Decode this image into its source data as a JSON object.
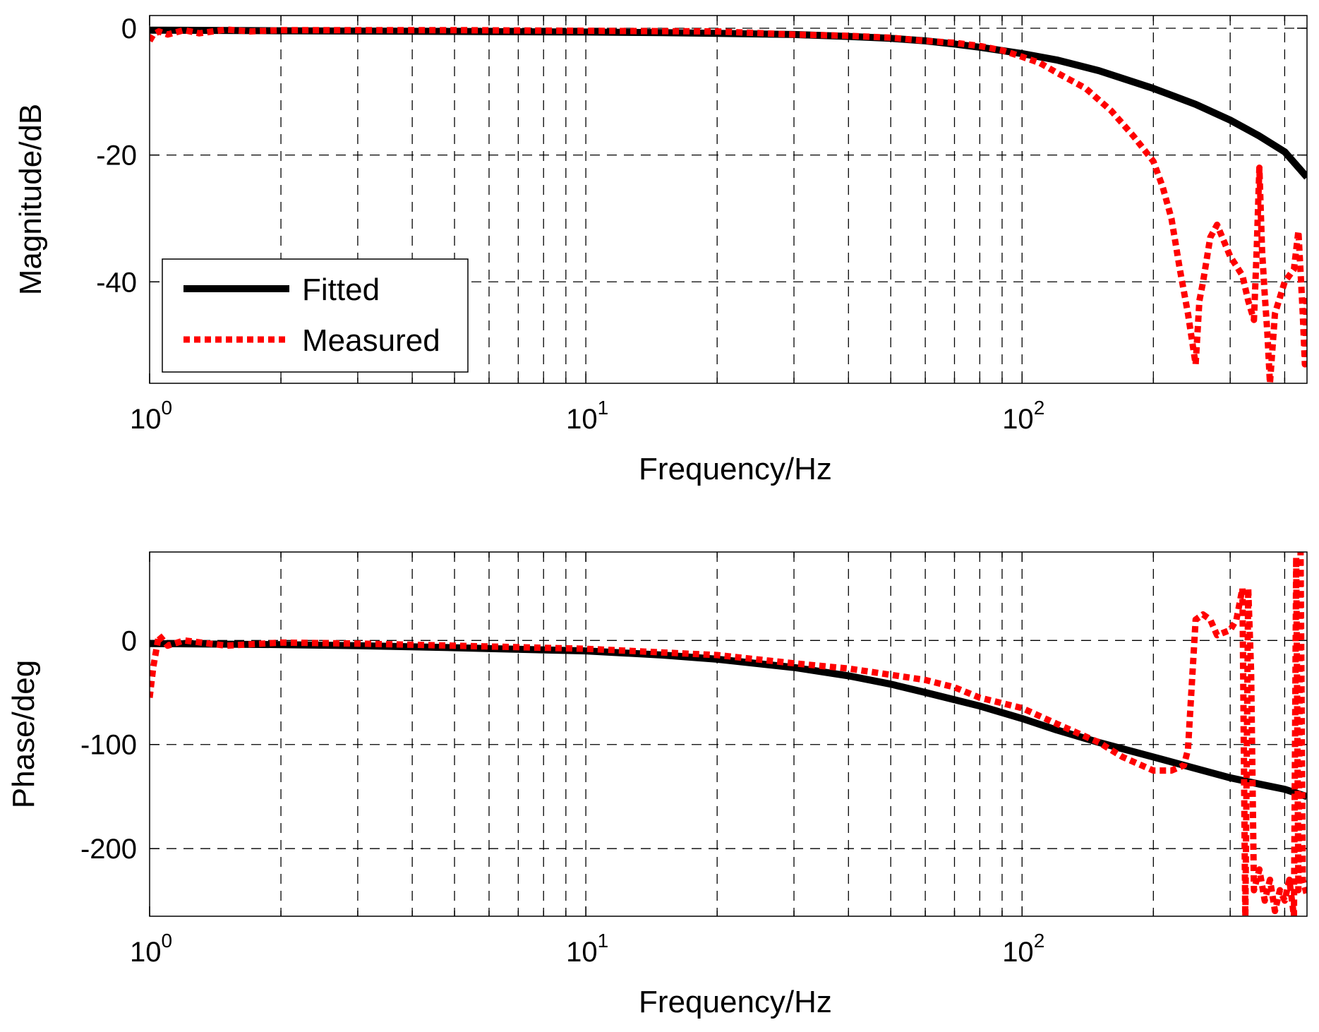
{
  "chart_data": [
    {
      "type": "line",
      "name": "magnitude",
      "xscale": "log",
      "xlim": [
        1,
        450
      ],
      "ylim": [
        -56,
        2
      ],
      "xlabel": "Frequency/Hz",
      "ylabel": "Magnitude/dB",
      "yticks": [
        0,
        -20,
        -40
      ],
      "ytick_labels": [
        "0",
        "-20",
        "-40"
      ],
      "xticks": [
        1,
        10,
        100
      ],
      "xtick_labels": [
        {
          "base": "10",
          "exp": "0"
        },
        {
          "base": "10",
          "exp": "1"
        },
        {
          "base": "10",
          "exp": "2"
        }
      ],
      "grid": true,
      "legend": {
        "position": "bottom-left",
        "entries": [
          "Fitted",
          "Measured"
        ]
      },
      "series": [
        {
          "name": "Fitted",
          "color": "#000000",
          "style": "solid",
          "x": [
            1,
            2,
            5,
            10,
            15,
            20,
            30,
            40,
            50,
            60,
            70,
            80,
            100,
            120,
            150,
            200,
            250,
            300,
            350,
            400,
            450
          ],
          "y": [
            -0.3,
            -0.4,
            -0.5,
            -0.6,
            -0.7,
            -0.8,
            -1.0,
            -1.3,
            -1.6,
            -2.0,
            -2.5,
            -3.0,
            -4.0,
            -5.0,
            -6.7,
            -9.5,
            -12.0,
            -14.5,
            -17.0,
            -19.5,
            -23.5
          ]
        },
        {
          "name": "Measured",
          "color": "#ff0000",
          "style": "dotted",
          "x": [
            1,
            1.02,
            1.05,
            1.1,
            1.2,
            1.3,
            1.5,
            1.7,
            2,
            2.5,
            3,
            5,
            10,
            20,
            30,
            40,
            50,
            60,
            70,
            80,
            90,
            100,
            110,
            120,
            140,
            160,
            180,
            200,
            210,
            220,
            230,
            240,
            250,
            255,
            260,
            270,
            280,
            300,
            320,
            330,
            340,
            345,
            350,
            355,
            360,
            365,
            370,
            380,
            400,
            420,
            430,
            440,
            445,
            450
          ],
          "y": [
            -2,
            -1,
            -0.5,
            -1,
            -0.3,
            -0.8,
            -0.2,
            -0.5,
            -0.3,
            -0.3,
            -0.3,
            -0.3,
            -0.4,
            -0.5,
            -1.0,
            -1.2,
            -1.5,
            -2.0,
            -2.3,
            -2.8,
            -3.5,
            -4.5,
            -5.5,
            -7.0,
            -9.5,
            -13.0,
            -17.0,
            -21.0,
            -25.0,
            -30.0,
            -38.0,
            -45.0,
            -53.0,
            -43.0,
            -40.0,
            -33.0,
            -31.0,
            -36.0,
            -39.0,
            -43.0,
            -46.0,
            -35.0,
            -22.0,
            -35.0,
            -42.0,
            -48.0,
            -56.0,
            -45.0,
            -40.0,
            -38.0,
            -32.0,
            -45.0,
            -53.0,
            -42.0
          ]
        }
      ]
    },
    {
      "type": "line",
      "name": "phase",
      "xscale": "log",
      "xlim": [
        1,
        450
      ],
      "ylim": [
        -265,
        85
      ],
      "xlabel": "Frequency/Hz",
      "ylabel": "Phase/deg",
      "yticks": [
        0,
        -100,
        -200
      ],
      "ytick_labels": [
        "0",
        "-100",
        "-200"
      ],
      "xticks": [
        1,
        10,
        100
      ],
      "xtick_labels": [
        {
          "base": "10",
          "exp": "0"
        },
        {
          "base": "10",
          "exp": "1"
        },
        {
          "base": "10",
          "exp": "2"
        }
      ],
      "grid": true,
      "series": [
        {
          "name": "Fitted",
          "color": "#000000",
          "style": "solid",
          "x": [
            1,
            2,
            3,
            5,
            10,
            15,
            20,
            30,
            40,
            50,
            60,
            80,
            100,
            120,
            150,
            200,
            250,
            300,
            350,
            400,
            450
          ],
          "y": [
            -3,
            -4,
            -5,
            -7,
            -10,
            -14,
            -18,
            -26,
            -34,
            -42,
            -50,
            -63,
            -75,
            -86,
            -98,
            -112,
            -123,
            -132,
            -138,
            -143,
            -150
          ]
        },
        {
          "name": "Measured",
          "color": "#ff0000",
          "style": "dotted",
          "x": [
            1,
            1.02,
            1.05,
            1.1,
            1.2,
            1.5,
            2,
            3,
            5,
            10,
            20,
            30,
            40,
            50,
            60,
            70,
            80,
            100,
            120,
            150,
            170,
            200,
            220,
            235,
            240,
            250,
            260,
            270,
            280,
            300,
            310,
            320,
            325,
            330,
            335,
            340,
            350,
            360,
            370,
            380,
            390,
            400,
            410,
            420,
            425,
            430,
            435,
            440,
            450
          ],
          "y": [
            -55,
            -25,
            5,
            -5,
            0,
            -5,
            -2,
            -3,
            -5,
            -8,
            -14,
            -22,
            -27,
            -33,
            -38,
            -45,
            -55,
            -65,
            -80,
            -98,
            -112,
            -125,
            -125,
            -120,
            -105,
            20,
            25,
            20,
            5,
            10,
            20,
            50,
            -270,
            50,
            -30,
            -240,
            -220,
            -250,
            -230,
            -260,
            -240,
            -250,
            -230,
            -265,
            80,
            -240,
            85,
            -230,
            -245
          ]
        }
      ]
    }
  ]
}
